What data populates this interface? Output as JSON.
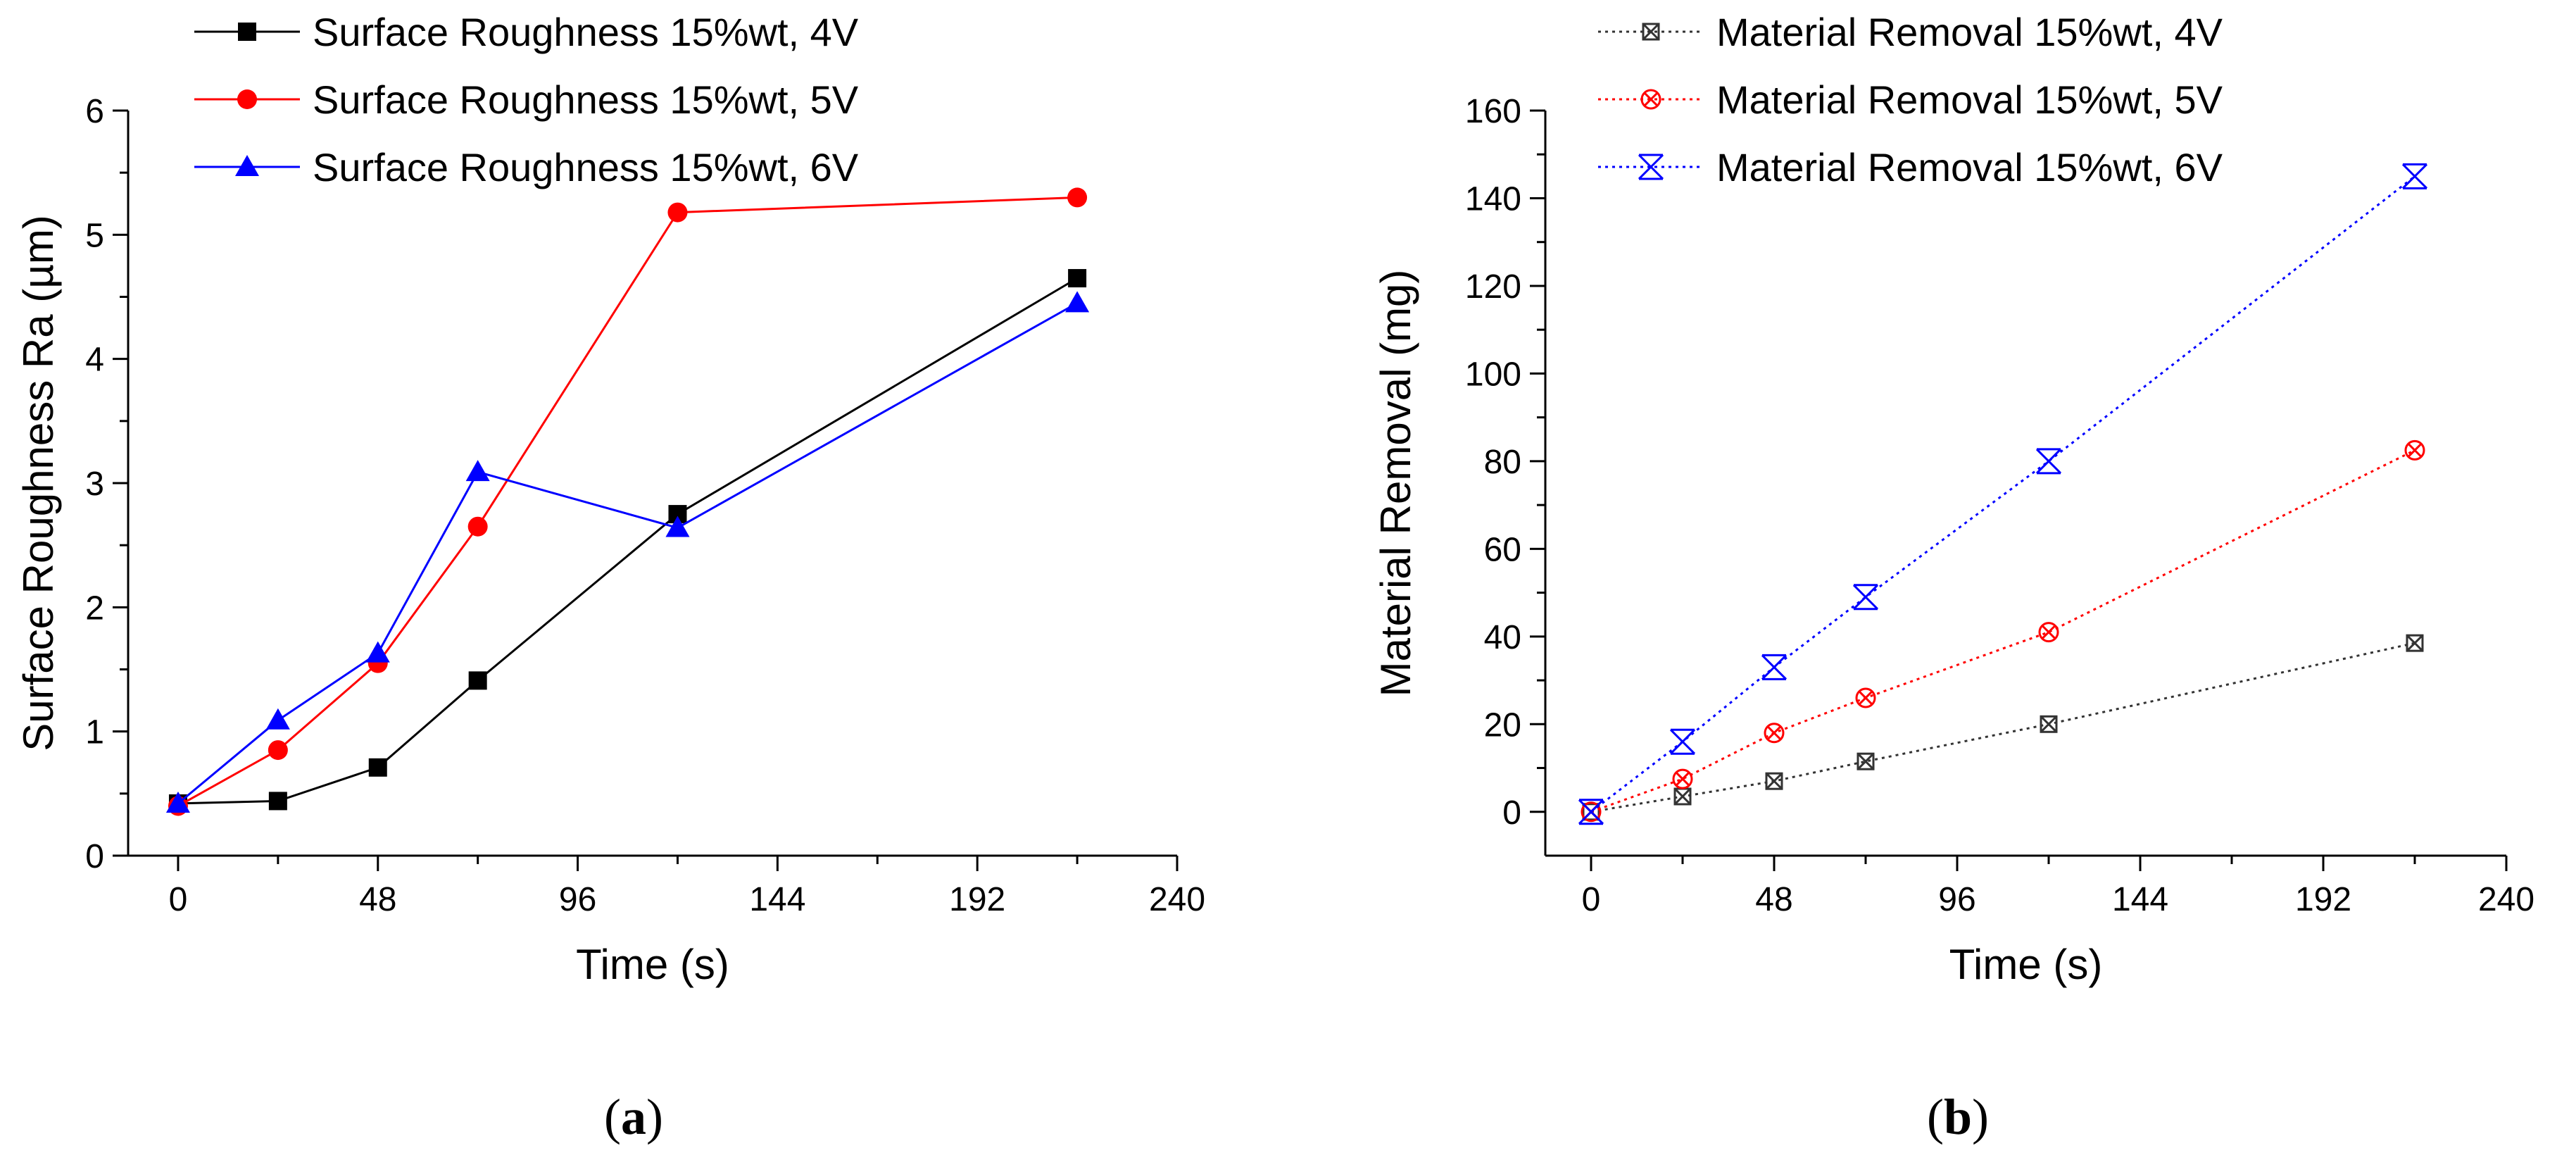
{
  "chart_data": [
    {
      "type": "line",
      "panel_label": "a",
      "title": "",
      "xlabel": "Time (s)",
      "ylabel": "Surface Roughness Ra (µm)",
      "xlim": [
        -12,
        240
      ],
      "ylim": [
        0,
        6
      ],
      "xticks": [
        0,
        48,
        96,
        144,
        192,
        240
      ],
      "yticks": [
        0,
        1,
        2,
        3,
        4,
        5,
        6
      ],
      "legend_position": "top-center",
      "x": [
        0,
        24,
        48,
        72,
        120,
        216
      ],
      "series": [
        {
          "name": "Surface Roughness 15%wt, 4V",
          "color": "#000000",
          "marker": "square",
          "line": "solid",
          "values": [
            0.42,
            0.44,
            0.71,
            1.41,
            2.75,
            4.65
          ]
        },
        {
          "name": "Surface Roughness 15%wt, 5V",
          "color": "#ff0000",
          "marker": "circle",
          "line": "solid",
          "values": [
            0.4,
            0.85,
            1.55,
            2.65,
            5.18,
            5.3
          ]
        },
        {
          "name": "Surface Roughness 15%wt, 6V",
          "color": "#0000ff",
          "marker": "triangle",
          "line": "solid",
          "values": [
            0.42,
            1.09,
            1.63,
            3.09,
            2.64,
            4.45
          ]
        }
      ]
    },
    {
      "type": "line",
      "panel_label": "b",
      "title": "",
      "xlabel": "Time (s)",
      "ylabel": "Material Removal (mg)",
      "xlim": [
        -12,
        240
      ],
      "ylim": [
        -10,
        160
      ],
      "xticks": [
        0,
        48,
        96,
        144,
        192,
        240
      ],
      "yticks": [
        0,
        20,
        40,
        60,
        80,
        100,
        120,
        140,
        160
      ],
      "legend_position": "top-left",
      "x": [
        0,
        24,
        48,
        72,
        120,
        216
      ],
      "series": [
        {
          "name": "Material Removal 15%wt, 4V",
          "color": "#333333",
          "marker": "boxed-x",
          "line": "dotted",
          "values": [
            0,
            3.5,
            7,
            11.5,
            20,
            38.5
          ]
        },
        {
          "name": "Material Removal 15%wt, 5V",
          "color": "#ff0000",
          "marker": "circled-x",
          "line": "dotted",
          "values": [
            0,
            7.5,
            18,
            26,
            41,
            82.5
          ]
        },
        {
          "name": "Material Removal 15%wt, 6V",
          "color": "#0000ff",
          "marker": "x-bars",
          "line": "dotted",
          "values": [
            0,
            16,
            33,
            49,
            80,
            145
          ]
        }
      ]
    }
  ]
}
